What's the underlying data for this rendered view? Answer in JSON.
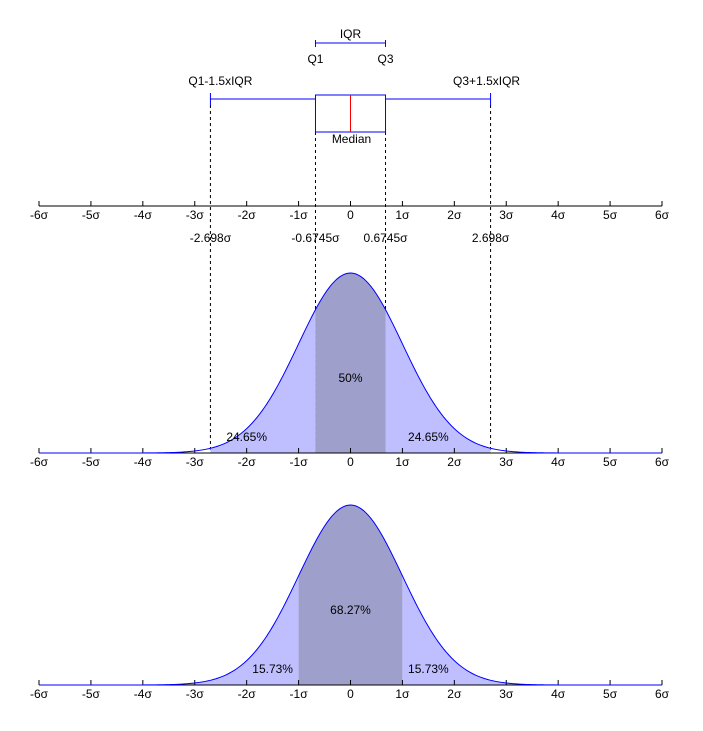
{
  "chart_data": [
    {
      "type": "box",
      "iqr_label": "IQR",
      "q1_label": "Q1",
      "q3_label": "Q3",
      "lower_fence_label": "Q1-1.5xIQR",
      "upper_fence_label": "Q3+1.5xIQR",
      "median_label": "Median",
      "values": [
        -2.698,
        -0.6745,
        0.6745,
        2.698
      ],
      "value_labels": [
        "-2.698σ",
        "-0.6745σ",
        "0.6745σ",
        "2.698σ"
      ],
      "median": 0,
      "color": "#0000ff",
      "median_color": "#ff0000",
      "xlim": [
        -6,
        6
      ],
      "xticks": [
        {
          "value": -6,
          "label": "-6σ"
        },
        {
          "value": -5,
          "label": "-5σ"
        },
        {
          "value": -4,
          "label": "-4σ"
        },
        {
          "value": -3,
          "label": "-3σ"
        },
        {
          "value": -2,
          "label": "-2σ"
        },
        {
          "value": -1,
          "label": "-1σ"
        },
        0,
        {
          "value": 1,
          "label": "1σ"
        },
        {
          "value": 2,
          "label": "2σ"
        },
        {
          "value": 3,
          "label": "3σ"
        },
        {
          "value": 4,
          "label": "4σ"
        },
        {
          "value": 5,
          "label": "5σ"
        },
        {
          "value": 6,
          "label": "6σ"
        }
      ]
    },
    {
      "type": "density",
      "inner": [
        -0.6745,
        0.6745
      ],
      "outer": [
        -2.698,
        2.698
      ],
      "values": [
        24.65,
        50,
        24.65
      ],
      "value_labels": [
        "24.65%",
        "50%",
        "24.65%"
      ],
      "color": "#0000ff",
      "tail_color": "#bfbfff",
      "center_color": "#9f9fcc",
      "xlim": [
        -6,
        6
      ],
      "xticks": [
        {
          "value": -6,
          "label": "-6σ"
        },
        {
          "value": -5,
          "label": "-5σ"
        },
        {
          "value": -4,
          "label": "-4σ"
        },
        {
          "value": -3,
          "label": "-3σ"
        },
        {
          "value": -2,
          "label": "-2σ"
        },
        {
          "value": -1,
          "label": "-1σ"
        },
        0,
        {
          "value": 1,
          "label": "1σ"
        },
        {
          "value": 2,
          "label": "2σ"
        },
        {
          "value": 3,
          "label": "3σ"
        },
        {
          "value": 4,
          "label": "4σ"
        },
        {
          "value": 5,
          "label": "5σ"
        },
        {
          "value": 6,
          "label": "6σ"
        }
      ]
    },
    {
      "type": "density",
      "inner": [
        -1,
        1
      ],
      "values": [
        15.73,
        68.27,
        15.73
      ],
      "value_labels": [
        "15.73%",
        "68.27%",
        "15.73%"
      ],
      "color": "#0000ff",
      "tail_color": "#bfbfff",
      "center_color": "#9f9fcc",
      "xlim": [
        -6,
        6
      ],
      "xticks": [
        {
          "value": -6,
          "label": "-6σ"
        },
        {
          "value": -5,
          "label": "-5σ"
        },
        {
          "value": -4,
          "label": "-4σ"
        },
        {
          "value": -3,
          "label": "-3σ"
        },
        {
          "value": -2,
          "label": "-2σ"
        },
        {
          "value": -1,
          "label": "-1σ"
        },
        0,
        {
          "value": 1,
          "label": "1σ"
        },
        {
          "value": 2,
          "label": "2σ"
        },
        {
          "value": 3,
          "label": "3σ"
        },
        {
          "value": 4,
          "label": "4σ"
        },
        {
          "value": 5,
          "label": "5σ"
        },
        {
          "value": 6,
          "label": "6σ"
        }
      ]
    }
  ]
}
